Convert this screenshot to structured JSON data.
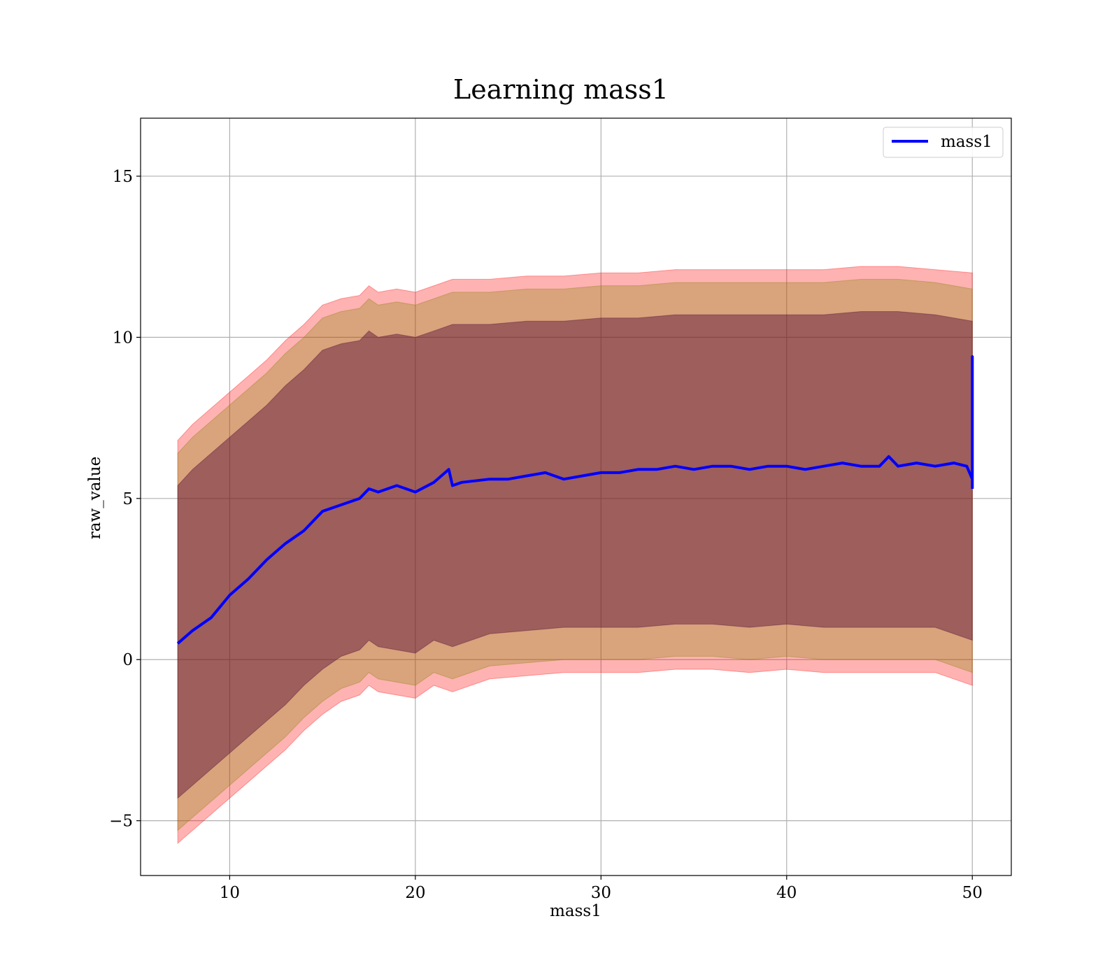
{
  "chart_data": {
    "type": "line",
    "title": "Learning mass1",
    "xlabel": "mass1",
    "ylabel": "raw_value",
    "xlim": [
      5.2,
      52.1
    ],
    "ylim": [
      -6.7,
      16.8
    ],
    "xticks": [
      10,
      20,
      30,
      40,
      50
    ],
    "yticks": [
      -5,
      0,
      5,
      10,
      15
    ],
    "xtick_labels": [
      "10",
      "20",
      "30",
      "40",
      "50"
    ],
    "ytick_labels": [
      "−5",
      "0",
      "5",
      "10",
      "15"
    ],
    "grid": true,
    "legend_position": "top-right",
    "series": [
      {
        "name": "mass1",
        "color": "#0000ff",
        "x": [
          7.2,
          8,
          9,
          10,
          11,
          12,
          13,
          14,
          15,
          16,
          17,
          17.5,
          18,
          19,
          20,
          21,
          21.8,
          22,
          22.5,
          24,
          25,
          26,
          27,
          28,
          29,
          30,
          31,
          32,
          33,
          34,
          35,
          36,
          37,
          38,
          39,
          40,
          41,
          42,
          43,
          44,
          45,
          45.5,
          46,
          47,
          48,
          49,
          49.7,
          50,
          50,
          50
        ],
        "y": [
          0.5,
          0.9,
          1.3,
          2.0,
          2.5,
          3.1,
          3.6,
          4.0,
          4.6,
          4.8,
          5.0,
          5.3,
          5.2,
          5.4,
          5.2,
          5.5,
          5.9,
          5.4,
          5.5,
          5.6,
          5.6,
          5.7,
          5.8,
          5.6,
          5.7,
          5.8,
          5.8,
          5.9,
          5.9,
          6.0,
          5.9,
          6.0,
          6.0,
          5.9,
          6.0,
          6.0,
          5.9,
          6.0,
          6.1,
          6.0,
          6.0,
          6.3,
          6.0,
          6.1,
          6.0,
          6.1,
          6.0,
          5.6,
          9.4,
          5.3
        ]
      }
    ],
    "bands": [
      {
        "color": "#ff0000",
        "opacity": 0.3,
        "x": [
          7.2,
          8,
          9,
          10,
          11,
          12,
          13,
          14,
          15,
          16,
          17,
          17.5,
          18,
          19,
          20,
          21,
          22,
          24,
          26,
          28,
          30,
          32,
          34,
          36,
          38,
          40,
          42,
          44,
          46,
          48,
          50
        ],
        "upper": [
          6.8,
          7.3,
          7.8,
          8.3,
          8.8,
          9.3,
          9.9,
          10.4,
          11.0,
          11.2,
          11.3,
          11.6,
          11.4,
          11.5,
          11.4,
          11.6,
          11.8,
          11.8,
          11.9,
          11.9,
          12.0,
          12.0,
          12.1,
          12.1,
          12.1,
          12.1,
          12.1,
          12.2,
          12.2,
          12.1,
          12.0
        ],
        "lower": [
          -5.7,
          -5.3,
          -4.8,
          -4.3,
          -3.8,
          -3.3,
          -2.8,
          -2.2,
          -1.7,
          -1.3,
          -1.1,
          -0.8,
          -1.0,
          -1.1,
          -1.2,
          -0.8,
          -1.0,
          -0.6,
          -0.5,
          -0.4,
          -0.4,
          -0.4,
          -0.3,
          -0.3,
          -0.4,
          -0.3,
          -0.4,
          -0.4,
          -0.4,
          -0.4,
          -0.8
        ]
      },
      {
        "color": "#808000",
        "opacity": 0.3,
        "x": [
          7.2,
          8,
          9,
          10,
          11,
          12,
          13,
          14,
          15,
          16,
          17,
          17.5,
          18,
          19,
          20,
          21,
          22,
          24,
          26,
          28,
          30,
          32,
          34,
          36,
          38,
          40,
          42,
          44,
          46,
          48,
          50
        ],
        "upper": [
          6.4,
          6.9,
          7.4,
          7.9,
          8.4,
          8.9,
          9.5,
          10.0,
          10.6,
          10.8,
          10.9,
          11.2,
          11.0,
          11.1,
          11.0,
          11.2,
          11.4,
          11.4,
          11.5,
          11.5,
          11.6,
          11.6,
          11.7,
          11.7,
          11.7,
          11.7,
          11.7,
          11.8,
          11.8,
          11.7,
          11.5
        ],
        "lower": [
          -5.3,
          -4.9,
          -4.4,
          -3.9,
          -3.4,
          -2.9,
          -2.4,
          -1.8,
          -1.3,
          -0.9,
          -0.7,
          -0.4,
          -0.6,
          -0.7,
          -0.8,
          -0.4,
          -0.6,
          -0.2,
          -0.1,
          0.0,
          0.0,
          0.0,
          0.1,
          0.1,
          0.0,
          0.1,
          0.0,
          0.0,
          0.0,
          0.0,
          -0.4
        ]
      },
      {
        "color": "#4b0030",
        "opacity": 0.42,
        "x": [
          7.2,
          8,
          9,
          10,
          11,
          12,
          13,
          14,
          15,
          16,
          17,
          17.5,
          18,
          19,
          20,
          21,
          22,
          24,
          26,
          28,
          30,
          32,
          34,
          36,
          38,
          40,
          42,
          44,
          46,
          48,
          50
        ],
        "upper": [
          5.4,
          5.9,
          6.4,
          6.9,
          7.4,
          7.9,
          8.5,
          9.0,
          9.6,
          9.8,
          9.9,
          10.2,
          10.0,
          10.1,
          10.0,
          10.2,
          10.4,
          10.4,
          10.5,
          10.5,
          10.6,
          10.6,
          10.7,
          10.7,
          10.7,
          10.7,
          10.7,
          10.8,
          10.8,
          10.7,
          10.5
        ],
        "lower": [
          -4.3,
          -3.9,
          -3.4,
          -2.9,
          -2.4,
          -1.9,
          -1.4,
          -0.8,
          -0.3,
          0.1,
          0.3,
          0.6,
          0.4,
          0.3,
          0.2,
          0.6,
          0.4,
          0.8,
          0.9,
          1.0,
          1.0,
          1.0,
          1.1,
          1.1,
          1.0,
          1.1,
          1.0,
          1.0,
          1.0,
          1.0,
          0.6
        ]
      }
    ]
  }
}
